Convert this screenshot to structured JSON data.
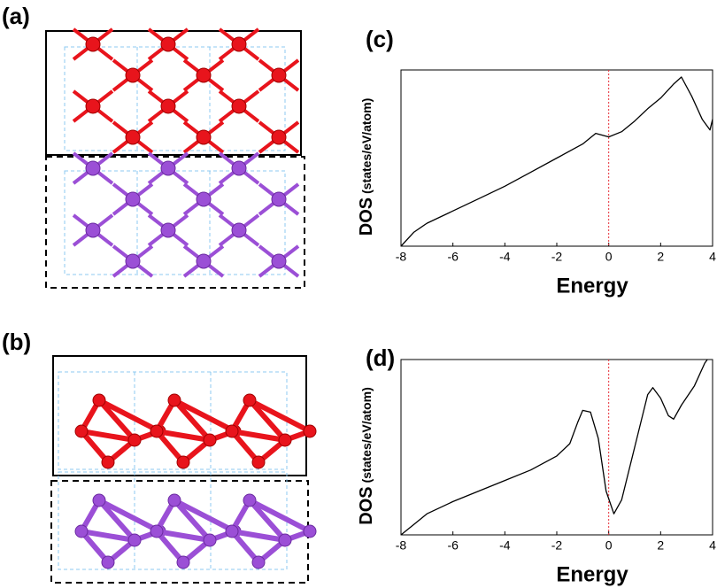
{
  "panel_labels": [
    "(a)",
    "(b)"
  ],
  "chart_data": [
    {
      "type": "line",
      "title": "(c)",
      "ylabel": "DOS",
      "ylabel_units": "(states/eV/atom)",
      "xlabel": "Energy",
      "xlim": [
        -8,
        4
      ],
      "xticks": [
        -8,
        -6,
        -4,
        -2,
        0,
        2,
        4
      ],
      "ylim": [
        0,
        100
      ],
      "vline": {
        "x": 0,
        "color": "#e8303a"
      },
      "series": [
        {
          "color": "#000000",
          "x": [
            -8,
            -7.5,
            -7,
            -6,
            -5,
            -4,
            -3,
            -2,
            -1,
            -0.5,
            0,
            0.5,
            1,
            1.5,
            2,
            2.5,
            2.8,
            3.2,
            3.6,
            3.9,
            4
          ],
          "values": [
            0,
            8,
            13,
            20,
            27,
            34,
            42,
            50,
            58,
            64,
            62,
            65,
            71,
            78,
            84,
            92,
            96,
            85,
            72,
            66,
            72
          ]
        }
      ]
    },
    {
      "type": "line",
      "title": "(d)",
      "ylabel": "DOS",
      "ylabel_units": "(states/eV/atom)",
      "xlabel": "Energy",
      "xlim": [
        -8,
        4
      ],
      "xticks": [
        -8,
        -6,
        -4,
        -2,
        0,
        2,
        4
      ],
      "ylim": [
        0,
        100
      ],
      "vline": {
        "x": 0,
        "color": "#e8303a"
      },
      "series": [
        {
          "color": "#000000",
          "x": [
            -8,
            -7.5,
            -7,
            -6,
            -5,
            -4,
            -3,
            -2,
            -1.5,
            -1.2,
            -1,
            -0.7,
            -0.4,
            -0.1,
            0.2,
            0.5,
            1,
            1.5,
            1.7,
            2,
            2.3,
            2.5,
            2.8,
            3.3,
            3.7,
            3.8
          ],
          "values": [
            0,
            6,
            12,
            19,
            25,
            31,
            37,
            45,
            52,
            64,
            71,
            70,
            55,
            25,
            12,
            20,
            50,
            80,
            84,
            78,
            68,
            66,
            74,
            85,
            98,
            100
          ]
        }
      ]
    }
  ]
}
